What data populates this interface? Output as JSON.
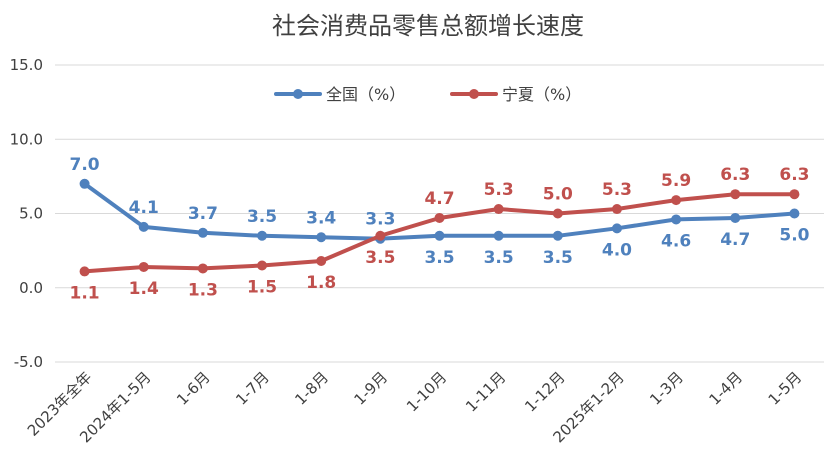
{
  "chart_data": {
    "type": "line",
    "title": "社会消费品零售总额增长速度",
    "categories": [
      "2023年全年",
      "2024年1-5月",
      "1-6月",
      "1-7月",
      "1-8月",
      "1-9月",
      "1-10月",
      "1-11月",
      "1-12月",
      "2025年1-2月",
      "1-3月",
      "1-4月",
      "1-5月"
    ],
    "series": [
      {
        "name": "全国（%）",
        "color": "#4F81BD",
        "values": [
          7.0,
          4.1,
          3.7,
          3.5,
          3.4,
          3.3,
          3.5,
          3.5,
          3.5,
          4.0,
          4.6,
          4.7,
          5.0
        ],
        "labels": [
          "7.0",
          "4.1",
          "3.7",
          "3.5",
          "3.4",
          "3.3",
          "3.5",
          "3.5",
          "3.5",
          "4.0",
          "4.6",
          "4.7",
          "5.0"
        ],
        "label_pos": [
          "above",
          "above",
          "above",
          "above",
          "above",
          "above",
          "below",
          "below",
          "below",
          "below",
          "below",
          "below",
          "below"
        ]
      },
      {
        "name": "宁夏（%）",
        "color": "#C0504D",
        "values": [
          1.1,
          1.4,
          1.3,
          1.5,
          1.8,
          3.5,
          4.7,
          5.3,
          5.0,
          5.3,
          5.9,
          6.3,
          6.3
        ],
        "labels": [
          "1.1",
          "1.4",
          "1.3",
          "1.5",
          "1.8",
          "3.5",
          "4.7",
          "5.3",
          "5.0",
          "5.3",
          "5.9",
          "6.3",
          "6.3"
        ],
        "label_pos": [
          "below",
          "below",
          "below",
          "below",
          "below",
          "below",
          "above",
          "above",
          "above",
          "above",
          "above",
          "above",
          "above"
        ]
      }
    ],
    "ylim": [
      -5.0,
      15.0
    ],
    "yticks": [
      "-5.0",
      "0.0",
      "5.0",
      "10.0",
      "15.0"
    ],
    "ytick_values": [
      -5,
      0,
      5,
      10,
      15
    ],
    "grid": true,
    "legend_position": "top-center"
  }
}
